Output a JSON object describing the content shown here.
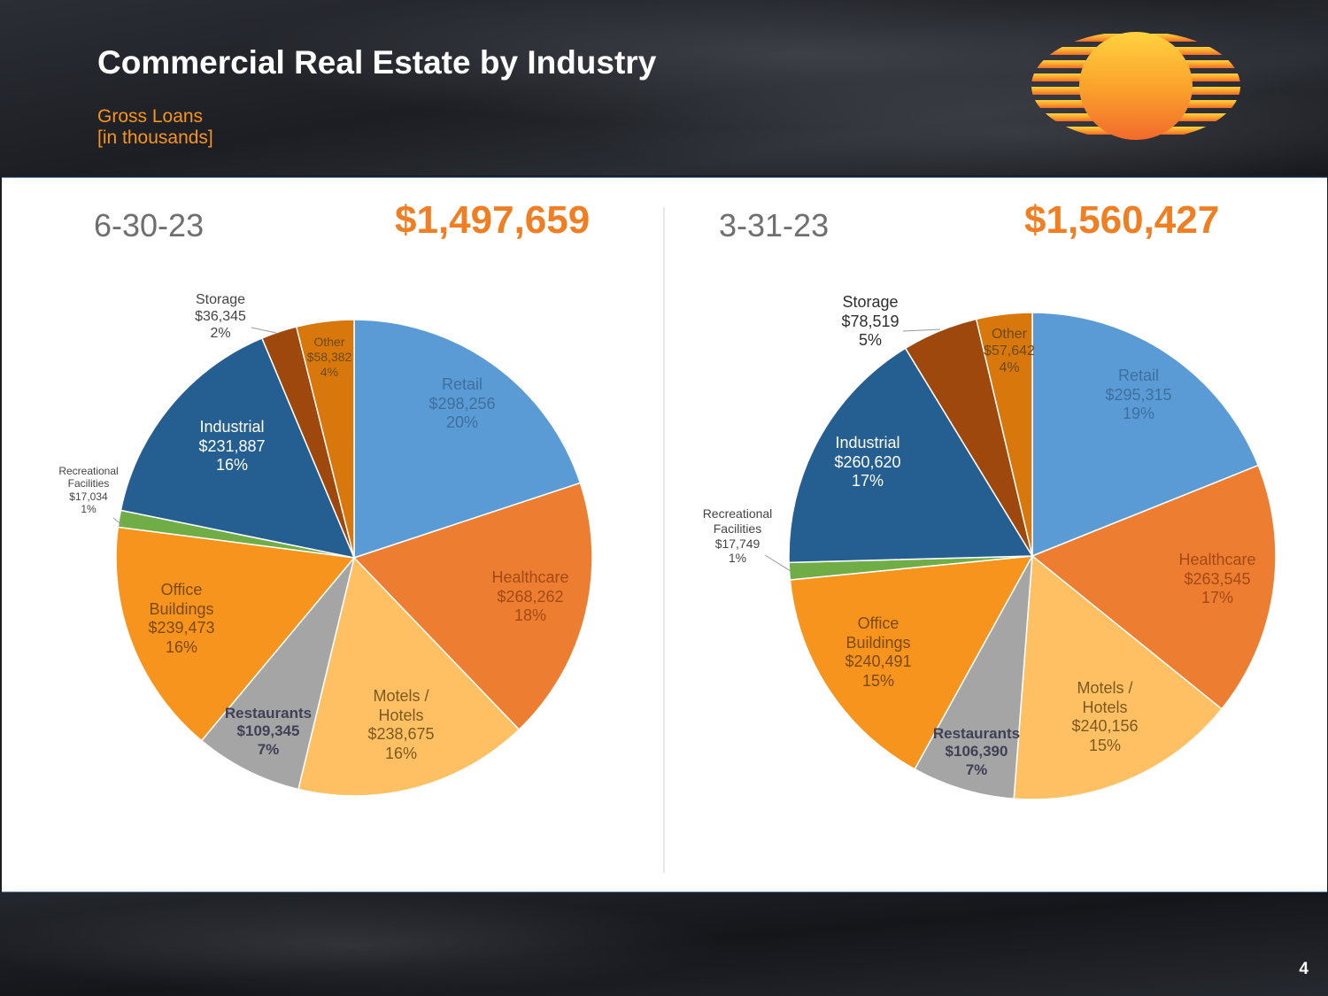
{
  "header": {
    "title": "Commercial Real Estate by Industry",
    "subtitle_line1": "Gross Loans",
    "subtitle_line2": "[in thousands]"
  },
  "page_number": "4",
  "colors": {
    "accent": "#f07f23",
    "retail": "#5b9bd5",
    "healthcare": "#ed7d31",
    "motels": "#ffc063",
    "restaurants": "#a5a5a5",
    "office": "#f7941d",
    "recreational": "#70ad47",
    "industrial": "#255e91",
    "storage": "#9e480e",
    "other": "#d8780c"
  },
  "chart_data": [
    {
      "type": "pie",
      "period": "6-30-23",
      "total": "$1,497,659",
      "slices": [
        {
          "key": "retail",
          "name": "Retail",
          "value": 298256,
          "value_label": "$298,256",
          "pct": "20%"
        },
        {
          "key": "healthcare",
          "name": "Healthcare",
          "value": 268262,
          "value_label": "$268,262",
          "pct": "18%"
        },
        {
          "key": "motels",
          "name": "Motels / Hotels",
          "value": 238675,
          "value_label": "$238,675",
          "pct": "16%"
        },
        {
          "key": "restaurants",
          "name": "Restaurants",
          "value": 109345,
          "value_label": "$109,345",
          "pct": "7%"
        },
        {
          "key": "office",
          "name": "Office Buildings",
          "value": 239473,
          "value_label": "$239,473",
          "pct": "16%"
        },
        {
          "key": "recreational",
          "name": "Recreational Facilities",
          "value": 17034,
          "value_label": "$17,034",
          "pct": "1%"
        },
        {
          "key": "industrial",
          "name": "Industrial",
          "value": 231887,
          "value_label": "$231,887",
          "pct": "16%"
        },
        {
          "key": "storage",
          "name": "Storage",
          "value": 36345,
          "value_label": "$36,345",
          "pct": "2%"
        },
        {
          "key": "other",
          "name": "Other",
          "value": 58382,
          "value_label": "$58,382",
          "pct": "4%"
        }
      ]
    },
    {
      "type": "pie",
      "period": "3-31-23",
      "total": "$1,560,427",
      "slices": [
        {
          "key": "retail",
          "name": "Retail",
          "value": 295315,
          "value_label": "$295,315",
          "pct": "19%"
        },
        {
          "key": "healthcare",
          "name": "Healthcare",
          "value": 263545,
          "value_label": "$263,545",
          "pct": "17%"
        },
        {
          "key": "motels",
          "name": "Motels / Hotels",
          "value": 240156,
          "value_label": "$240,156",
          "pct": "15%"
        },
        {
          "key": "restaurants",
          "name": "Restaurants",
          "value": 106390,
          "value_label": "$106,390",
          "pct": "7%"
        },
        {
          "key": "office",
          "name": "Office Buildings",
          "value": 240491,
          "value_label": "$240,491",
          "pct": "15%"
        },
        {
          "key": "recreational",
          "name": "Recreational Facilities",
          "value": 17749,
          "value_label": "$17,749",
          "pct": "1%"
        },
        {
          "key": "industrial",
          "name": "Industrial",
          "value": 260620,
          "value_label": "$260,620",
          "pct": "17%"
        },
        {
          "key": "storage",
          "name": "Storage",
          "value": 78519,
          "value_label": "$78,519",
          "pct": "5%"
        },
        {
          "key": "other",
          "name": "Other",
          "value": 57642,
          "value_label": "$57,642",
          "pct": "4%"
        }
      ]
    }
  ]
}
